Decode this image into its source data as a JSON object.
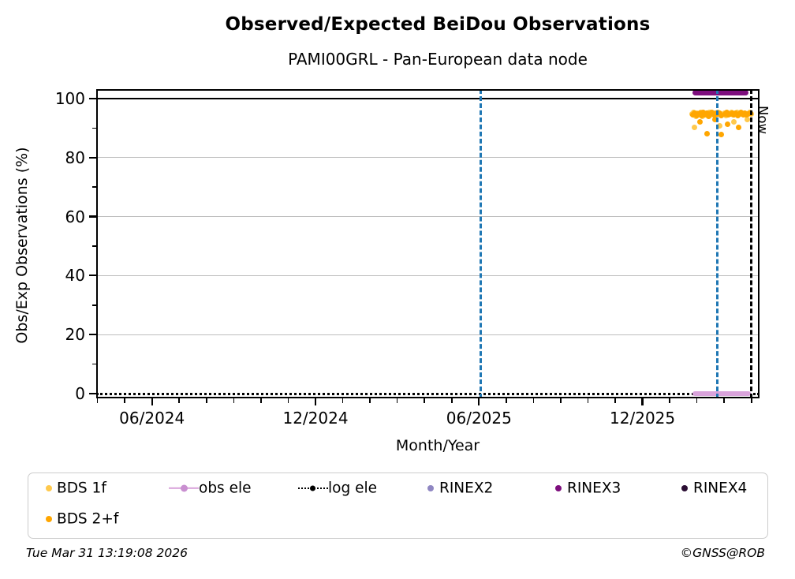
{
  "header": {
    "title": "Observed/Expected BeiDou Observations",
    "subtitle": "PAMI00GRL - Pan-European data node"
  },
  "footer": {
    "timestamp": "Tue Mar 31 13:19:08 2026",
    "credit": "©GNSS@ROB"
  },
  "legend": {
    "items": [
      {
        "label": "BDS 1f",
        "marker": "dot",
        "color": "#ffc94d"
      },
      {
        "label": "BDS 2+f",
        "marker": "dot",
        "color": "#ffa600"
      },
      {
        "label": "obs ele",
        "marker": "line-dot",
        "color": "#d9a3db"
      },
      {
        "label": "log ele",
        "marker": "dotted-line-dot",
        "color": "#000000"
      },
      {
        "label": "RINEX2",
        "marker": "dot",
        "color": "#8f86c2"
      },
      {
        "label": "RINEX3",
        "marker": "dot",
        "color": "#7d0e7d"
      },
      {
        "label": "RINEX4",
        "marker": "dot",
        "color": "#2b0e33"
      }
    ]
  },
  "chart_data": {
    "type": "scatter",
    "title": "Observed/Expected BeiDou Observations",
    "subtitle": "PAMI00GRL - Pan-European data node",
    "xlabel": "Month/Year",
    "ylabel": "Obs/Exp Observations (%)",
    "xlim": [
      "2024-03-30",
      "2026-04-10"
    ],
    "ylim": [
      -1.6,
      103.2
    ],
    "x_ticks": [
      {
        "date": "2024-06-01",
        "label": "06/2024"
      },
      {
        "date": "2024-12-01",
        "label": "12/2024"
      },
      {
        "date": "2025-06-01",
        "label": "06/2025"
      },
      {
        "date": "2025-12-01",
        "label": "12/2025"
      }
    ],
    "y_ticks_major": [
      0,
      20,
      40,
      60,
      80,
      100
    ],
    "y_ticks_minor": [
      10,
      30,
      50,
      70,
      90
    ],
    "y_gridlines": [
      20,
      40,
      60,
      80
    ],
    "reference_line_y": 100,
    "now_line": {
      "date": "2026-03-31",
      "label": "Now",
      "color": "#000000"
    },
    "event_lines": [
      {
        "date": "2025-06-03",
        "color": "#1f77b4"
      },
      {
        "date": "2026-02-24",
        "color": "#1f77b4"
      }
    ],
    "series": [
      {
        "name": "BDS 1f",
        "type": "scatter",
        "color": "#ffc94d",
        "points": [
          [
            "2026-01-26",
            94.8
          ],
          [
            "2026-01-28",
            95.2
          ],
          [
            "2026-01-30",
            94.1
          ],
          [
            "2026-02-01",
            95.0
          ],
          [
            "2026-02-03",
            94.4
          ],
          [
            "2026-02-05",
            95.3
          ],
          [
            "2026-02-07",
            94.0
          ],
          [
            "2026-02-09",
            94.9
          ],
          [
            "2026-02-11",
            95.1
          ],
          [
            "2026-02-13",
            94.3
          ],
          [
            "2026-02-15",
            95.4
          ],
          [
            "2026-02-17",
            94.6
          ],
          [
            "2026-02-19",
            95.0
          ],
          [
            "2026-02-21",
            94.2
          ],
          [
            "2026-02-23",
            94.9
          ],
          [
            "2026-02-25",
            95.2
          ],
          [
            "2026-02-27",
            94.5
          ],
          [
            "2026-03-01",
            95.0
          ],
          [
            "2026-03-03",
            94.3
          ],
          [
            "2026-03-05",
            95.1
          ],
          [
            "2026-03-07",
            94.7
          ],
          [
            "2026-03-09",
            95.3
          ],
          [
            "2026-03-11",
            94.4
          ],
          [
            "2026-03-13",
            94.9
          ],
          [
            "2026-03-15",
            95.2
          ],
          [
            "2026-03-17",
            94.6
          ],
          [
            "2026-03-19",
            95.0
          ],
          [
            "2026-03-21",
            94.8
          ],
          [
            "2026-03-23",
            95.1
          ],
          [
            "2026-03-25",
            94.5
          ],
          [
            "2026-03-27",
            94.9
          ],
          [
            "2026-03-29",
            95.2
          ],
          [
            "2026-03-31",
            94.7
          ],
          [
            "2026-01-29",
            90.3
          ],
          [
            "2026-02-26",
            90.8
          ],
          [
            "2026-03-12",
            92.2
          ],
          [
            "2026-03-27",
            93.0
          ]
        ]
      },
      {
        "name": "BDS 2+f",
        "type": "scatter",
        "color": "#ffa600",
        "points": [
          [
            "2026-01-27",
            94.5
          ],
          [
            "2026-01-29",
            95.0
          ],
          [
            "2026-01-31",
            94.2
          ],
          [
            "2026-02-02",
            94.8
          ],
          [
            "2026-02-04",
            95.1
          ],
          [
            "2026-02-06",
            94.3
          ],
          [
            "2026-02-08",
            95.2
          ],
          [
            "2026-02-10",
            94.6
          ],
          [
            "2026-02-12",
            95.0
          ],
          [
            "2026-02-14",
            94.1
          ],
          [
            "2026-02-16",
            94.8
          ],
          [
            "2026-02-18",
            95.3
          ],
          [
            "2026-02-20",
            94.4
          ],
          [
            "2026-02-22",
            95.1
          ],
          [
            "2026-02-24",
            94.7
          ],
          [
            "2026-02-26",
            95.0
          ],
          [
            "2026-02-28",
            94.2
          ],
          [
            "2026-03-02",
            94.9
          ],
          [
            "2026-03-04",
            95.2
          ],
          [
            "2026-03-06",
            94.4
          ],
          [
            "2026-03-08",
            94.8
          ],
          [
            "2026-03-10",
            95.1
          ],
          [
            "2026-03-12",
            94.5
          ],
          [
            "2026-03-14",
            95.0
          ],
          [
            "2026-03-16",
            94.3
          ],
          [
            "2026-03-18",
            94.9
          ],
          [
            "2026-03-20",
            95.2
          ],
          [
            "2026-03-22",
            94.6
          ],
          [
            "2026-03-24",
            95.0
          ],
          [
            "2026-03-26",
            94.4
          ],
          [
            "2026-03-28",
            94.8
          ],
          [
            "2026-03-30",
            95.1
          ],
          [
            "2026-02-04",
            92.2
          ],
          [
            "2026-02-12",
            88.2
          ],
          [
            "2026-02-21",
            93.0
          ],
          [
            "2026-02-28",
            87.7
          ],
          [
            "2026-03-05",
            91.4
          ],
          [
            "2026-03-17",
            90.3
          ]
        ]
      },
      {
        "name": "obs ele",
        "type": "line",
        "color": "#d9a3db",
        "width": 6,
        "points": [
          [
            "2026-01-26",
            0
          ],
          [
            "2026-03-31",
            0
          ]
        ]
      },
      {
        "name": "log ele",
        "type": "dotted-line",
        "color": "#000000",
        "points": [
          [
            "2024-03-30",
            0
          ],
          [
            "2026-04-10",
            0
          ]
        ]
      },
      {
        "name": "RINEX2",
        "type": "line",
        "color": "#8f86c2",
        "width": 7,
        "points": []
      },
      {
        "name": "RINEX3",
        "type": "line",
        "color": "#7d0e7d",
        "width": 7,
        "points": [
          [
            "2026-01-26",
            102
          ],
          [
            "2026-03-28",
            102
          ]
        ]
      },
      {
        "name": "RINEX4",
        "type": "line",
        "color": "#2b0e33",
        "width": 7,
        "points": []
      }
    ]
  }
}
